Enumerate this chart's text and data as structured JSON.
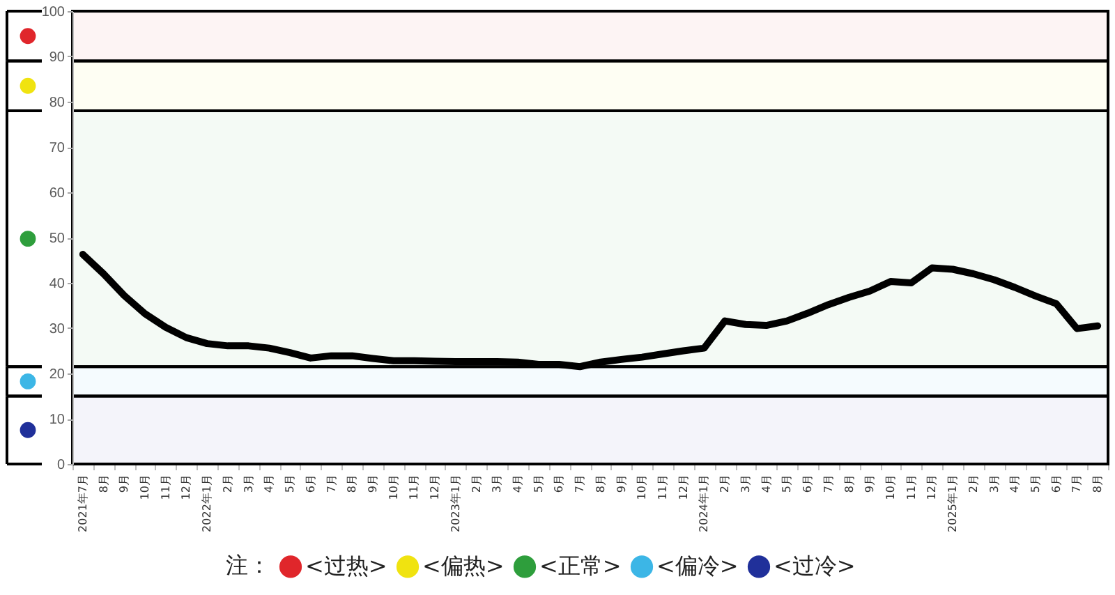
{
  "chart_data": {
    "type": "line",
    "categories": [
      "2021年7月",
      "8月",
      "9月",
      "10月",
      "11月",
      "12月",
      "2022年1月",
      "2月",
      "3月",
      "4月",
      "5月",
      "6月",
      "7月",
      "8月",
      "9月",
      "10月",
      "11月",
      "12月",
      "2023年1月",
      "2月",
      "3月",
      "4月",
      "5月",
      "6月",
      "7月",
      "8月",
      "9月",
      "10月",
      "11月",
      "12月",
      "2024年1月",
      "2月",
      "3月",
      "4月",
      "5月",
      "6月",
      "7月",
      "8月",
      "9月",
      "10月",
      "11月",
      "12月",
      "2025年1月",
      "2月",
      "3月",
      "4月",
      "5月",
      "6月",
      "7月",
      "8月"
    ],
    "series": [
      {
        "color": "#000000",
        "values": [
          46.3,
          42.0,
          37.2,
          33.2,
          30.2,
          27.9,
          26.6,
          26.1,
          26.1,
          25.6,
          24.6,
          23.4,
          23.9,
          23.9,
          23.3,
          22.8,
          22.8,
          22.7,
          22.6,
          22.6,
          22.6,
          22.5,
          22.0,
          22.0,
          21.5,
          22.5,
          23.1,
          23.6,
          24.3,
          25.0,
          25.6,
          31.6,
          30.8,
          30.6,
          31.6,
          33.3,
          35.2,
          36.8,
          38.2,
          40.3,
          40.0,
          43.3,
          43.0,
          42.0,
          40.7,
          39.0,
          37.1,
          35.4,
          29.9,
          30.5
        ]
      }
    ],
    "ylim": [
      0,
      100
    ],
    "yticks": [
      0,
      10,
      20,
      30,
      40,
      50,
      60,
      70,
      80,
      90,
      100
    ],
    "bands": [
      {
        "axis": "y",
        "from": 89,
        "to": 100,
        "label": "<过热>",
        "color": "#e0262b"
      },
      {
        "axis": "y",
        "from": 78,
        "to": 89,
        "label": "<偏热>",
        "color": "#f0e310"
      },
      {
        "axis": "y",
        "from": 21.5,
        "to": 78,
        "label": "<正常>",
        "color": "#2e9e3c"
      },
      {
        "axis": "y",
        "from": 15,
        "to": 21.5,
        "label": "<偏冷>",
        "color": "#3cb6e6"
      },
      {
        "axis": "y",
        "from": 0,
        "to": 15,
        "label": "<过冷>",
        "color": "#20309a"
      }
    ],
    "legend_title": "注：",
    "legend": "bottom",
    "line_style": "solid"
  }
}
